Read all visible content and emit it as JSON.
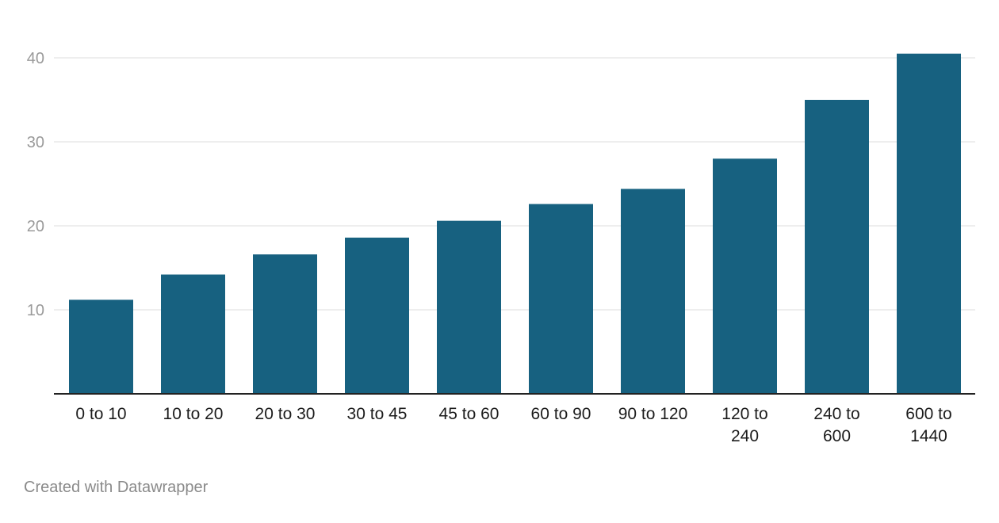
{
  "chart_data": {
    "type": "bar",
    "categories": [
      "0 to 10",
      "10 to 20",
      "20 to 30",
      "30 to 45",
      "45 to 60",
      "60 to 90",
      "90 to 120",
      "120 to 240",
      "240 to 600",
      "600 to 1440"
    ],
    "values": [
      11.2,
      14.2,
      16.6,
      18.6,
      20.6,
      22.6,
      24.4,
      28.0,
      35.0,
      40.5
    ],
    "title": "",
    "xlabel": "",
    "ylabel": "",
    "ylim": [
      0,
      42
    ],
    "yticks": [
      10,
      20,
      30,
      40
    ],
    "grid": true,
    "bar_color": "#176180"
  },
  "footer": {
    "credit": "Created with Datawrapper"
  }
}
